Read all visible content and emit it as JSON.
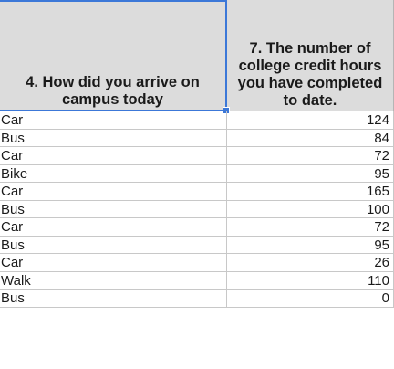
{
  "headers": {
    "col_a": "4. How did you arrive on campus today",
    "col_b": "7. The number of college credit hours you have completed to date."
  },
  "rows": [
    {
      "arrival": "Car",
      "credits": "124"
    },
    {
      "arrival": "Bus",
      "credits": "84"
    },
    {
      "arrival": "Car",
      "credits": "72"
    },
    {
      "arrival": "Bike",
      "credits": "95"
    },
    {
      "arrival": "Car",
      "credits": "165"
    },
    {
      "arrival": "Bus",
      "credits": "100"
    },
    {
      "arrival": "Car",
      "credits": "72"
    },
    {
      "arrival": "Bus",
      "credits": "95"
    },
    {
      "arrival": "Car",
      "credits": "26"
    },
    {
      "arrival": "Walk",
      "credits": "110"
    },
    {
      "arrival": "Bus",
      "credits": "0"
    }
  ],
  "colors": {
    "header_bg": "#dcdcdc",
    "selection": "#3c78d8",
    "gridline": "#c8c8c8"
  }
}
